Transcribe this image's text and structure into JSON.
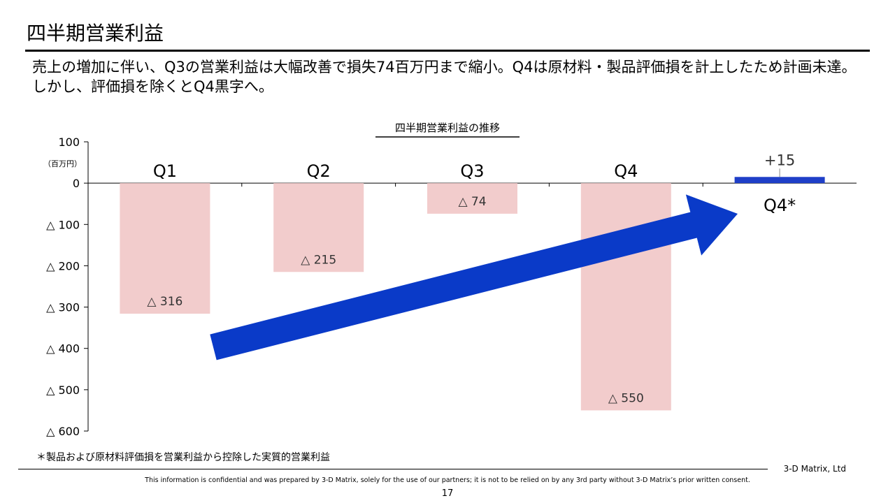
{
  "slide": {
    "title": "四半期営業利益",
    "subtitle": "売上の増加に伴い、Q3の営業利益は大幅改善で損失74百万円まで縮小。Q4は原材料・製品評価損を計上したため計画未達。しかし、評価損を除くとQ4黒字へ。",
    "footnote": "＊製品および原材料評価損を営業利益から控除した実質的営業利益",
    "company": "3-D Matrix, Ltd",
    "disclaimer": "This information is confidential and was prepared by 3-D Matrix, solely for the use of our partners; it is not to be relied on by any 3rd party without 3-D Matrix’s prior written consent.",
    "page_number": "17"
  },
  "chart_data": {
    "type": "bar",
    "title": "四半期営業利益の推移",
    "unit_label": "（百万円）",
    "ylim": [
      -600,
      100
    ],
    "yticks": [
      {
        "value": 100,
        "label": "100"
      },
      {
        "value": 0,
        "label": "0"
      },
      {
        "value": -100,
        "label": "△ 100"
      },
      {
        "value": -200,
        "label": "△ 200"
      },
      {
        "value": -300,
        "label": "△ 300"
      },
      {
        "value": -400,
        "label": "△ 400"
      },
      {
        "value": -500,
        "label": "△ 500"
      },
      {
        "value": -600,
        "label": "△ 600"
      }
    ],
    "categories": [
      "Q1",
      "Q2",
      "Q3",
      "Q4",
      "Q4*"
    ],
    "values": [
      -316,
      -215,
      -74,
      -550,
      15
    ],
    "value_labels": [
      "△ 316",
      "△ 215",
      "△ 74",
      "△ 550",
      "+15"
    ],
    "bar_colors": [
      "#f2cccc",
      "#f2cccc",
      "#f2cccc",
      "#f2cccc",
      "#1f3fc8"
    ],
    "arrow_color": "#0a3ac8",
    "grid": false,
    "legend": "none"
  }
}
